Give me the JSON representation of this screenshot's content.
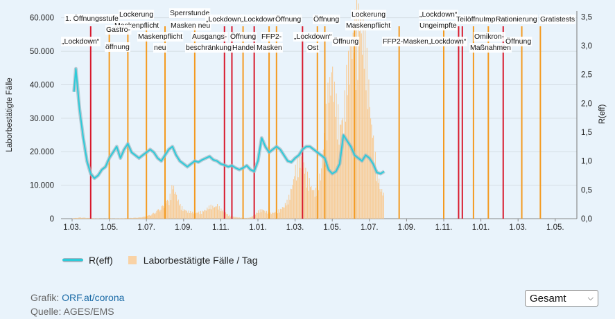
{
  "chart_data": {
    "type": "bar+line",
    "x_axis": {
      "ticks": [
        "1.03.",
        "1.05.",
        "1.07.",
        "1.09.",
        "1.11.",
        "1.01.",
        "1.03.",
        "1.05.",
        "1.07.",
        "1.09.",
        "1.11.",
        "1.01.",
        "1.03.",
        "1.05."
      ]
    },
    "y_left": {
      "label": "Laborbestätigte Fälle",
      "range": [
        0,
        62000
      ],
      "ticks": [
        "0",
        "10.000",
        "20.000",
        "30.000",
        "40.000",
        "50.000",
        "60.000"
      ]
    },
    "y_right": {
      "label": "R(eff)",
      "range": [
        0,
        3.6
      ],
      "ticks": [
        "0,0",
        "0,5",
        "1,0",
        "1,5",
        "2,0",
        "2,5",
        "3,0",
        "3,5"
      ]
    },
    "series": [
      {
        "name": "R(eff)",
        "kind": "line",
        "color": "#2ccbd9",
        "points": [
          [
            0.5,
            2.2
          ],
          [
            1,
            2.6
          ],
          [
            2,
            1.9
          ],
          [
            3,
            1.4
          ],
          [
            4,
            1.0
          ],
          [
            5,
            0.78
          ],
          [
            6,
            0.7
          ],
          [
            7,
            0.75
          ],
          [
            8,
            0.85
          ],
          [
            9,
            0.9
          ],
          [
            10,
            1.05
          ],
          [
            11,
            1.15
          ],
          [
            12,
            1.25
          ],
          [
            13,
            1.05
          ],
          [
            14,
            1.2
          ],
          [
            15,
            1.3
          ],
          [
            16,
            1.15
          ],
          [
            17,
            1.1
          ],
          [
            18,
            1.05
          ],
          [
            19,
            1.1
          ],
          [
            20,
            1.15
          ],
          [
            21,
            1.2
          ],
          [
            22,
            1.15
          ],
          [
            23,
            1.05
          ],
          [
            24,
            1.0
          ],
          [
            25,
            1.1
          ],
          [
            26,
            1.2
          ],
          [
            27,
            1.25
          ],
          [
            28,
            1.1
          ],
          [
            29,
            1.0
          ],
          [
            30,
            0.95
          ],
          [
            31,
            0.9
          ],
          [
            32,
            0.95
          ],
          [
            33,
            1.0
          ],
          [
            34,
            0.98
          ],
          [
            35,
            1.02
          ],
          [
            36,
            1.05
          ],
          [
            37,
            1.08
          ],
          [
            38,
            1.02
          ],
          [
            39,
            1.0
          ],
          [
            40,
            0.95
          ],
          [
            41,
            0.93
          ],
          [
            42,
            0.9
          ],
          [
            43,
            0.92
          ],
          [
            44,
            0.88
          ],
          [
            45,
            0.85
          ],
          [
            46,
            0.88
          ],
          [
            47,
            0.92
          ],
          [
            48,
            0.85
          ],
          [
            49,
            0.82
          ],
          [
            50,
            1.0
          ],
          [
            51,
            1.4
          ],
          [
            52,
            1.25
          ],
          [
            53,
            1.15
          ],
          [
            54,
            1.2
          ],
          [
            55,
            1.25
          ],
          [
            56,
            1.2
          ],
          [
            57,
            1.1
          ],
          [
            58,
            1.0
          ],
          [
            59,
            0.98
          ],
          [
            60,
            1.05
          ],
          [
            61,
            1.1
          ],
          [
            62,
            1.2
          ],
          [
            63,
            1.25
          ],
          [
            64,
            1.25
          ],
          [
            65,
            1.2
          ],
          [
            66,
            1.15
          ],
          [
            67,
            1.1
          ],
          [
            68,
            1.05
          ],
          [
            69,
            0.85
          ],
          [
            70,
            0.78
          ],
          [
            71,
            0.82
          ],
          [
            72,
            0.95
          ],
          [
            73,
            1.45
          ],
          [
            74,
            1.35
          ],
          [
            75,
            1.25
          ],
          [
            76,
            1.1
          ],
          [
            77,
            1.05
          ],
          [
            78,
            1.0
          ],
          [
            79,
            1.1
          ],
          [
            80,
            1.05
          ],
          [
            81,
            0.95
          ],
          [
            82,
            0.8
          ],
          [
            83,
            0.78
          ],
          [
            84,
            0.82
          ]
        ]
      },
      {
        "name": "Laborbestätigte Fälle / Tag",
        "kind": "bar",
        "color": "#f9c98f",
        "points": [
          [
            0,
            100
          ],
          [
            2,
            300
          ],
          [
            4,
            200
          ],
          [
            6,
            100
          ],
          [
            8,
            50
          ],
          [
            10,
            60
          ],
          [
            12,
            80
          ],
          [
            14,
            150
          ],
          [
            16,
            200
          ],
          [
            18,
            300
          ],
          [
            20,
            600
          ],
          [
            22,
            1500
          ],
          [
            24,
            3000
          ],
          [
            26,
            5000
          ],
          [
            27,
            9000
          ],
          [
            28,
            6000
          ],
          [
            29,
            3500
          ],
          [
            30,
            2500
          ],
          [
            31,
            2000
          ],
          [
            32,
            1800
          ],
          [
            33,
            1500
          ],
          [
            34,
            1700
          ],
          [
            35,
            2000
          ],
          [
            36,
            2500
          ],
          [
            37,
            3500
          ],
          [
            38,
            3000
          ],
          [
            39,
            3500
          ],
          [
            40,
            2500
          ],
          [
            41,
            1800
          ],
          [
            42,
            1000
          ],
          [
            43,
            600
          ],
          [
            44,
            400
          ],
          [
            45,
            300
          ],
          [
            46,
            200
          ],
          [
            47,
            200
          ],
          [
            48,
            400
          ],
          [
            49,
            1000
          ],
          [
            50,
            2000
          ],
          [
            51,
            2500
          ],
          [
            52,
            2000
          ],
          [
            53,
            1500
          ],
          [
            54,
            1500
          ],
          [
            55,
            2000
          ],
          [
            56,
            2500
          ],
          [
            57,
            3500
          ],
          [
            58,
            5000
          ],
          [
            59,
            8000
          ],
          [
            60,
            13000
          ],
          [
            61,
            16000
          ],
          [
            62,
            15000
          ],
          [
            63,
            12000
          ],
          [
            64,
            9000
          ],
          [
            65,
            7000
          ],
          [
            66,
            8000
          ],
          [
            67,
            14000
          ],
          [
            68,
            25000
          ],
          [
            69,
            35000
          ],
          [
            70,
            38000
          ],
          [
            71,
            30000
          ],
          [
            72,
            25000
          ],
          [
            73,
            28000
          ],
          [
            74,
            40000
          ],
          [
            75,
            45000
          ],
          [
            76,
            50000
          ],
          [
            77,
            55000
          ],
          [
            78,
            52000
          ],
          [
            79,
            45000
          ],
          [
            80,
            30000
          ],
          [
            81,
            20000
          ],
          [
            82,
            12000
          ],
          [
            83,
            8000
          ],
          [
            84,
            6000
          ]
        ]
      }
    ],
    "event_lines": [
      {
        "x": 5,
        "color": "#d8192c"
      },
      {
        "x": 10,
        "color": "#f49a1f"
      },
      {
        "x": 15,
        "color": "#f49a1f"
      },
      {
        "x": 20,
        "color": "#f49a1f"
      },
      {
        "x": 25,
        "color": "#f49a1f"
      },
      {
        "x": 33,
        "color": "#f49a1f"
      },
      {
        "x": 41,
        "color": "#d8192c"
      },
      {
        "x": 43,
        "color": "#d8192c"
      },
      {
        "x": 46,
        "color": "#f49a1f"
      },
      {
        "x": 49,
        "color": "#d8192c"
      },
      {
        "x": 53,
        "color": "#f49a1f"
      },
      {
        "x": 55,
        "color": "#f49a1f"
      },
      {
        "x": 62,
        "color": "#d8192c"
      },
      {
        "x": 66,
        "color": "#f49a1f"
      },
      {
        "x": 68,
        "color": "#f49a1f"
      },
      {
        "x": 76,
        "color": "#f49a1f"
      },
      {
        "x": 88,
        "color": "#f49a1f"
      },
      {
        "x": 100,
        "color": "#f49a1f"
      },
      {
        "x": 104,
        "color": "#d8192c"
      },
      {
        "x": 105,
        "color": "#d8192c"
      },
      {
        "x": 108,
        "color": "#f49a1f"
      },
      {
        "x": 112,
        "color": "#f49a1f"
      },
      {
        "x": 116,
        "color": "#d8192c"
      },
      {
        "x": 121,
        "color": "#f49a1f"
      },
      {
        "x": 126,
        "color": "#f49a1f"
      }
    ],
    "annotations": [
      {
        "text": "1. Öffnungsstufe",
        "x": 94,
        "y": 30
      },
      {
        "text": "„Lockdown“",
        "x": 89,
        "y": 63
      },
      {
        "text": "Lockerung",
        "x": 172,
        "y": 24
      },
      {
        "text": "Maskenpflicht",
        "x": 165,
        "y": 40
      },
      {
        "text": "Gastro-",
        "x": 153,
        "y": 46
      },
      {
        "text": "öffnung",
        "x": 152,
        "y": 71
      },
      {
        "text": "Maskenpflicht",
        "x": 199,
        "y": 56
      },
      {
        "text": "neu",
        "x": 222,
        "y": 72
      },
      {
        "text": "Sperrstunde",
        "x": 245,
        "y": 22
      },
      {
        "text": "Masken neu",
        "x": 246,
        "y": 40
      },
      {
        "text": "Ausgangs-",
        "x": 277,
        "y": 56
      },
      {
        "text": "beschränkung",
        "x": 268,
        "y": 72
      },
      {
        "text": "„Lockdown“",
        "x": 297,
        "y": 31
      },
      {
        "text": "„Lockdown“",
        "x": 348,
        "y": 31
      },
      {
        "text": "Öffnung",
        "x": 332,
        "y": 56
      },
      {
        "text": "Handel",
        "x": 335,
        "y": 72
      },
      {
        "text": "FFP2-",
        "x": 377,
        "y": 56
      },
      {
        "text": "Masken",
        "x": 370,
        "y": 72
      },
      {
        "text": "Öffnung",
        "x": 397,
        "y": 31
      },
      {
        "text": "„Lockdown“",
        "x": 424,
        "y": 56
      },
      {
        "text": "Ost",
        "x": 443,
        "y": 72
      },
      {
        "text": "Öffnung",
        "x": 452,
        "y": 31
      },
      {
        "text": "Öffnung",
        "x": 480,
        "y": 63
      },
      {
        "text": "Lockerung",
        "x": 507,
        "y": 24
      },
      {
        "text": "Maskenpflicht",
        "x": 499,
        "y": 40
      },
      {
        "text": "FFP2-Masken",
        "x": 552,
        "y": 63
      },
      {
        "text": "„Lockdown“",
        "x": 605,
        "y": 24
      },
      {
        "text": "Ungeimpfte",
        "x": 605,
        "y": 40
      },
      {
        "text": "„Lockdown“",
        "x": 618,
        "y": 63
      },
      {
        "text": "Teilöffnung",
        "x": 658,
        "y": 31
      },
      {
        "text": "Impfpflicht",
        "x": 697,
        "y": 31
      },
      {
        "text": "Rationierung",
        "x": 715,
        "y": 31
      },
      {
        "text": "Gratistests",
        "x": 779,
        "y": 31
      },
      {
        "text": "Omikron-",
        "x": 684,
        "y": 56
      },
      {
        "text": "Maßnahmen",
        "x": 678,
        "y": 72
      },
      {
        "text": "Öffnung",
        "x": 729,
        "y": 63
      }
    ]
  },
  "legend": {
    "reff_label": "R(eff)",
    "cases_label": "Laborbestätigte Fälle / Tag"
  },
  "credits": {
    "grafik_prefix": "Grafik: ",
    "grafik_link": "ORF.at/corona",
    "quelle": "Quelle: AGES/EMS"
  },
  "selector": {
    "value": "Gesamt"
  }
}
